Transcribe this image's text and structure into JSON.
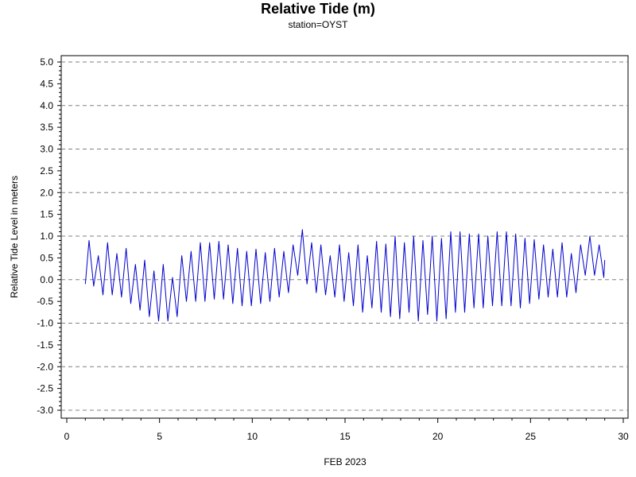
{
  "chart_data": {
    "type": "line",
    "title": "Relative Tide (m)",
    "subtitle": "station=OYST",
    "xlabel": "FEB 2023",
    "ylabel": "Relative Tide Level in meters",
    "xlim": [
      0,
      30
    ],
    "ylim": [
      -3.0,
      5.0
    ],
    "x_ticks": [
      0,
      5,
      10,
      15,
      20,
      25,
      30
    ],
    "y_ticks": [
      5.0,
      4.5,
      4.0,
      3.5,
      3.0,
      2.5,
      2.0,
      1.5,
      1.0,
      0.5,
      0.0,
      -0.5,
      -1.0,
      -1.5,
      -2.0,
      -2.5,
      -3.0
    ],
    "y_tick_labels": [
      "5.0",
      "4.5",
      "4.0",
      "3.5",
      "3.0",
      "2.5",
      "2.0",
      "1.5",
      "1.0",
      "0.5",
      "0.0",
      "-0.5",
      "-1.0",
      "-1.5",
      "-2.0",
      "-2.5",
      "-3.0"
    ],
    "grid_lines_y": [
      5.0,
      4.0,
      3.0,
      2.0,
      1.0,
      0.0,
      -1.0,
      -2.0,
      -3.0
    ],
    "grid": "dashed horizontal at whole meters",
    "series": [
      {
        "color": "#0000cc",
        "x": [
          1.0,
          1.2,
          1.45,
          1.7,
          1.95,
          2.2,
          2.45,
          2.7,
          2.95,
          3.2,
          3.45,
          3.7,
          3.95,
          4.2,
          4.45,
          4.7,
          4.95,
          5.2,
          5.45,
          5.7,
          5.95,
          6.2,
          6.45,
          6.7,
          6.95,
          7.2,
          7.45,
          7.7,
          7.95,
          8.2,
          8.45,
          8.7,
          8.95,
          9.2,
          9.45,
          9.7,
          9.95,
          10.2,
          10.45,
          10.7,
          10.95,
          11.2,
          11.45,
          11.7,
          11.95,
          12.2,
          12.45,
          12.7,
          12.95,
          13.2,
          13.45,
          13.7,
          13.95,
          14.2,
          14.45,
          14.7,
          14.95,
          15.2,
          15.45,
          15.7,
          15.95,
          16.2,
          16.45,
          16.7,
          16.95,
          17.2,
          17.45,
          17.7,
          17.95,
          18.2,
          18.45,
          18.7,
          18.95,
          19.2,
          19.45,
          19.7,
          19.95,
          20.2,
          20.45,
          20.7,
          20.95,
          21.2,
          21.45,
          21.7,
          21.95,
          22.2,
          22.45,
          22.7,
          22.95,
          23.2,
          23.45,
          23.7,
          23.95,
          24.2,
          24.45,
          24.7,
          24.95,
          25.2,
          25.45,
          25.7,
          25.95,
          26.2,
          26.45,
          26.7,
          26.95,
          27.2,
          27.45,
          27.7,
          27.95,
          28.2,
          28.45,
          28.7,
          28.95,
          29.0
        ],
        "y": [
          -0.1,
          0.9,
          -0.15,
          0.55,
          -0.35,
          0.85,
          -0.35,
          0.6,
          -0.4,
          0.72,
          -0.55,
          0.35,
          -0.7,
          0.45,
          -0.85,
          0.2,
          -0.95,
          0.35,
          -0.95,
          0.05,
          -0.85,
          0.55,
          -0.5,
          0.65,
          -0.5,
          0.85,
          -0.5,
          0.85,
          -0.45,
          0.88,
          -0.45,
          0.8,
          -0.55,
          0.72,
          -0.6,
          0.65,
          -0.6,
          0.7,
          -0.55,
          0.62,
          -0.5,
          0.72,
          -0.4,
          0.65,
          -0.3,
          0.8,
          0.1,
          1.15,
          -0.1,
          0.85,
          -0.3,
          0.8,
          -0.35,
          0.55,
          -0.4,
          0.8,
          -0.5,
          0.62,
          -0.6,
          0.8,
          -0.75,
          0.55,
          -0.65,
          0.88,
          -0.75,
          0.82,
          -0.85,
          1.0,
          -0.9,
          0.85,
          -0.75,
          1.0,
          -0.95,
          0.9,
          -0.8,
          1.0,
          -0.95,
          0.95,
          -0.9,
          1.1,
          -0.75,
          1.1,
          -0.75,
          1.05,
          -0.65,
          1.05,
          -0.65,
          1.0,
          -0.6,
          1.1,
          -0.6,
          1.1,
          -0.6,
          1.05,
          -0.65,
          0.95,
          -0.55,
          0.92,
          -0.45,
          0.8,
          -0.4,
          0.7,
          -0.4,
          0.85,
          -0.4,
          0.6,
          -0.3,
          0.8,
          0.1,
          1.0,
          0.1,
          0.8,
          0.05,
          0.45
        ]
      }
    ]
  }
}
